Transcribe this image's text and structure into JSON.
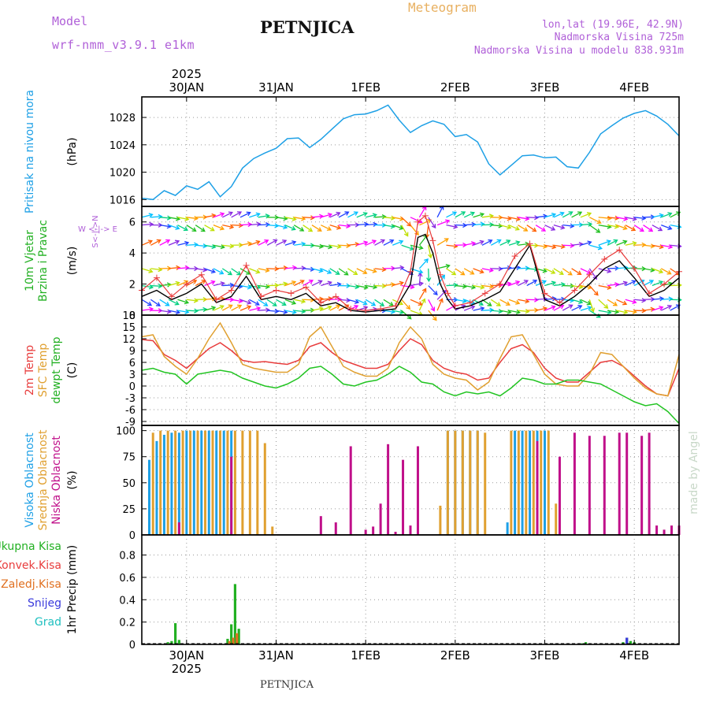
{
  "header": {
    "model_label": "Model",
    "model_name": "wrf-nmm_v3.9.1 e1km",
    "title": "PETNJICA",
    "meteogram": "Meteogram",
    "lonlat": "lon,lat (19.96E, 42.9N)",
    "altitude": "Nadmorska Visina 725m",
    "altitude_model": "Nadmorska Visina u modelu 838.931m",
    "footer_title": "PETNJICA",
    "credit": "made by Angel"
  },
  "time_axis": {
    "year": "2025",
    "days": [
      "30JAN",
      "31JAN",
      "1FEB",
      "2FEB",
      "3FEB",
      "4FEB"
    ],
    "day_hours": [
      12,
      36,
      60,
      84,
      108,
      132
    ],
    "range_hours": [
      0,
      144
    ]
  },
  "colors": {
    "pressure": "#1ea0e6",
    "temp2m": "#e83c3c",
    "sfc_temp": "#e0a030",
    "dewpoint": "#22c422",
    "wind_speed": "#000000",
    "gust": "#e83c3c",
    "high_cloud": "#1ea0e6",
    "mid_cloud": "#e0a030",
    "low_cloud": "#c0108a",
    "precip_total": "#22b022",
    "precip_convective": "#e83c3c",
    "precip_frozen": "#e07020",
    "snow": "#3a3adc",
    "graupel": "#20c0c0"
  },
  "chart_data": [
    {
      "type": "line",
      "name": "pressure",
      "ylabel_lines": [
        "Pritisak na nivou mora"
      ],
      "unit": "(hPa)",
      "ylim": [
        1015,
        1031
      ],
      "yticks": [
        1016,
        1020,
        1024,
        1028
      ],
      "grid": true,
      "series": [
        {
          "x": [
            0,
            3,
            6,
            9,
            12,
            15,
            18,
            21,
            24,
            27,
            30,
            33,
            36,
            39,
            42,
            45,
            48,
            51,
            54,
            57,
            60,
            63,
            66,
            69,
            72,
            75,
            78,
            81,
            84,
            87,
            90,
            93,
            96,
            99,
            102,
            105,
            108,
            111,
            114,
            117,
            120,
            123,
            126,
            129,
            132,
            135,
            138,
            141,
            144
          ],
          "y": [
            1016.2,
            1016.0,
            1017.3,
            1016.6,
            1018.0,
            1017.5,
            1018.6,
            1016.4,
            1017.9,
            1020.6,
            1022.0,
            1022.8,
            1023.5,
            1024.9,
            1025.0,
            1023.6,
            1024.8,
            1026.3,
            1027.8,
            1028.4,
            1028.5,
            1029.0,
            1029.8,
            1027.6,
            1025.8,
            1026.8,
            1027.5,
            1027.0,
            1025.2,
            1025.5,
            1024.4,
            1021.2,
            1019.6,
            1021.0,
            1022.4,
            1022.5,
            1022.1,
            1022.2,
            1020.8,
            1020.6,
            1022.9,
            1025.6,
            1026.8,
            1027.9,
            1028.6,
            1029.0,
            1028.2,
            1027.0,
            1025.3
          ]
        }
      ]
    },
    {
      "type": "line",
      "name": "wind",
      "ylabel_lines": [
        "10m Vjetar",
        "Brzina i Pravac"
      ],
      "unit": "(m/s)",
      "compass_label": "W <-|-> E",
      "compass_vertical": "S<-|->N",
      "ylim": [
        0,
        7
      ],
      "yticks": [
        0,
        2,
        4,
        6
      ],
      "grid": true,
      "arrow_rows": [
        0.3,
        1.0,
        1.9,
        3.0,
        4.5,
        5.8,
        6.3
      ],
      "series": [
        {
          "name": "speed",
          "x": [
            0,
            4,
            8,
            12,
            16,
            20,
            24,
            28,
            32,
            36,
            40,
            44,
            48,
            52,
            56,
            60,
            64,
            68,
            72,
            74,
            76,
            78,
            80,
            82,
            84,
            88,
            92,
            96,
            100,
            104,
            108,
            112,
            116,
            120,
            124,
            128,
            132,
            136,
            140,
            144
          ],
          "y": [
            1.2,
            1.6,
            1.0,
            1.4,
            2.0,
            0.8,
            1.2,
            2.5,
            1.0,
            1.2,
            1.0,
            1.4,
            0.6,
            0.8,
            0.3,
            0.2,
            0.3,
            0.4,
            2.0,
            5.0,
            5.2,
            4.0,
            2.0,
            1.0,
            0.4,
            0.6,
            1.0,
            1.5,
            3.0,
            4.5,
            1.0,
            0.6,
            1.2,
            2.0,
            3.0,
            3.5,
            2.4,
            1.2,
            1.6,
            2.4
          ]
        },
        {
          "name": "gust",
          "x": [
            0,
            4,
            8,
            12,
            16,
            20,
            24,
            28,
            32,
            36,
            40,
            44,
            48,
            52,
            56,
            60,
            64,
            68,
            72,
            74,
            76,
            78,
            80,
            82,
            84,
            88,
            92,
            96,
            100,
            104,
            108,
            112,
            116,
            120,
            124,
            128,
            132,
            136,
            140,
            144
          ],
          "y": [
            1.6,
            2.4,
            1.2,
            2.0,
            2.6,
            1.0,
            1.6,
            3.2,
            1.2,
            1.6,
            1.4,
            1.8,
            0.8,
            1.2,
            0.4,
            0.3,
            0.4,
            0.6,
            2.8,
            6.0,
            6.4,
            4.8,
            2.6,
            1.4,
            0.6,
            0.8,
            1.4,
            2.0,
            3.8,
            4.6,
            1.4,
            0.8,
            1.6,
            2.6,
            3.6,
            4.2,
            3.0,
            1.4,
            2.0,
            2.8
          ]
        }
      ]
    },
    {
      "type": "line",
      "name": "temperature",
      "ylabel_lines": [
        "2m Temp",
        "SFC Temp",
        "dewpt Temp"
      ],
      "unit": "(C)",
      "ylim": [
        -10,
        18
      ],
      "yticks": [
        -9,
        -6,
        -3,
        0,
        3,
        6,
        9,
        12,
        15,
        18
      ],
      "grid": true,
      "series": [
        {
          "name": "2m Temp",
          "x": [
            0,
            3,
            6,
            9,
            12,
            15,
            18,
            21,
            24,
            27,
            30,
            33,
            36,
            39,
            42,
            45,
            48,
            51,
            54,
            57,
            60,
            63,
            66,
            69,
            72,
            75,
            78,
            81,
            84,
            87,
            90,
            93,
            96,
            99,
            102,
            105,
            108,
            111,
            114,
            117,
            120,
            123,
            126,
            129,
            132,
            135,
            138,
            141,
            144
          ],
          "y": [
            11.8,
            11.5,
            8.0,
            6.5,
            4.5,
            7.0,
            9.5,
            11.0,
            9.0,
            6.5,
            6.0,
            6.2,
            5.8,
            5.5,
            6.5,
            10.0,
            11.0,
            8.5,
            6.5,
            5.5,
            4.5,
            4.5,
            5.5,
            9.0,
            12.0,
            10.5,
            6.5,
            4.5,
            3.5,
            3.0,
            1.5,
            2.0,
            6.0,
            9.5,
            10.5,
            8.5,
            4.5,
            2.0,
            1.0,
            1.0,
            3.5,
            6.0,
            6.5,
            5.0,
            2.5,
            0.0,
            -2.0,
            -2.5,
            4.5
          ]
        },
        {
          "name": "SFC Temp",
          "x": [
            0,
            3,
            6,
            9,
            12,
            15,
            18,
            21,
            24,
            27,
            30,
            33,
            36,
            39,
            42,
            45,
            48,
            51,
            54,
            57,
            60,
            63,
            66,
            69,
            72,
            75,
            78,
            81,
            84,
            87,
            90,
            93,
            96,
            99,
            102,
            105,
            108,
            111,
            114,
            117,
            120,
            123,
            126,
            129,
            132,
            135,
            138,
            141,
            144
          ],
          "y": [
            12.5,
            13.0,
            7.5,
            5.0,
            3.0,
            7.0,
            12.0,
            16.0,
            11.0,
            5.5,
            4.5,
            4.0,
            3.5,
            3.5,
            5.5,
            12.5,
            15.0,
            10.0,
            5.0,
            3.5,
            2.5,
            2.5,
            4.5,
            11.0,
            15.0,
            12.0,
            5.5,
            3.0,
            2.0,
            1.5,
            -1.0,
            1.0,
            7.0,
            12.5,
            13.0,
            8.0,
            3.0,
            0.5,
            0.0,
            0.0,
            3.0,
            8.5,
            8.0,
            5.0,
            2.0,
            -0.5,
            -2.0,
            -2.5,
            8.0
          ]
        },
        {
          "name": "dewpt Temp",
          "x": [
            0,
            3,
            6,
            9,
            12,
            15,
            18,
            21,
            24,
            27,
            30,
            33,
            36,
            39,
            42,
            45,
            48,
            51,
            54,
            57,
            60,
            63,
            66,
            69,
            72,
            75,
            78,
            81,
            84,
            87,
            90,
            93,
            96,
            99,
            102,
            105,
            108,
            111,
            114,
            117,
            120,
            123,
            126,
            129,
            132,
            135,
            138,
            141,
            144
          ],
          "y": [
            4.0,
            4.5,
            3.5,
            3.0,
            0.5,
            3.0,
            3.5,
            4.0,
            3.5,
            2.0,
            1.0,
            0.0,
            -0.5,
            0.5,
            2.0,
            4.5,
            5.0,
            3.0,
            0.5,
            0.0,
            1.0,
            1.5,
            3.0,
            5.0,
            3.5,
            1.0,
            0.5,
            -1.5,
            -2.5,
            -1.5,
            -2.0,
            -1.5,
            -2.5,
            -0.5,
            2.0,
            1.5,
            0.5,
            0.5,
            1.5,
            1.5,
            1.0,
            0.5,
            -1.0,
            -2.5,
            -4.0,
            -5.0,
            -4.5,
            -6.5,
            -9.5
          ]
        }
      ]
    },
    {
      "type": "bar",
      "name": "cloud",
      "ylabel_lines": [
        "Visoka Oblacnost",
        "Srednja Oblacnost",
        "Niska Oblacnost"
      ],
      "unit": "(%)",
      "ylim": [
        0,
        105
      ],
      "yticks": [
        0,
        25,
        50,
        75,
        100
      ],
      "grid": true,
      "series": [
        {
          "name": "Visoka Oblacnost",
          "x": [
            2,
            4,
            6,
            8,
            10,
            12,
            14,
            16,
            18,
            20,
            22,
            24,
            82,
            84,
            86,
            88,
            90,
            98,
            100,
            102,
            104,
            106,
            108
          ],
          "y": [
            72,
            90,
            96,
            98,
            98,
            100,
            100,
            100,
            100,
            100,
            100,
            100,
            100,
            100,
            100,
            100,
            100,
            12,
            100,
            100,
            100,
            100,
            100
          ]
        },
        {
          "name": "Srednja Oblacnost",
          "x": [
            3,
            5,
            7,
            9,
            11,
            13,
            15,
            17,
            19,
            21,
            23,
            25,
            27,
            29,
            31,
            33,
            35,
            80,
            82,
            84,
            86,
            88,
            90,
            92,
            99,
            101,
            103,
            105,
            107,
            109,
            111
          ],
          "y": [
            98,
            100,
            100,
            100,
            100,
            100,
            100,
            100,
            100,
            100,
            100,
            100,
            100,
            100,
            100,
            88,
            8,
            28,
            100,
            100,
            100,
            100,
            100,
            98,
            100,
            100,
            100,
            100,
            100,
            100,
            30
          ]
        },
        {
          "name": "Niska Oblacnost",
          "x": [
            10,
            24,
            48,
            52,
            56,
            60,
            62,
            64,
            66,
            68,
            70,
            72,
            74,
            78,
            80,
            82,
            106,
            112,
            116,
            120,
            124,
            128,
            130,
            134,
            136,
            138,
            140,
            142,
            144
          ],
          "y": [
            12,
            75,
            18,
            12,
            85,
            5,
            8,
            30,
            87,
            3,
            72,
            9,
            85,
            0,
            0,
            0,
            90,
            75,
            98,
            95,
            95,
            98,
            98,
            95,
            98,
            9,
            5,
            9,
            9
          ]
        }
      ]
    },
    {
      "type": "bar",
      "name": "precipitation",
      "ylabel_lines": [
        "1hr Precip (mm)"
      ],
      "legend": [
        "Ukupna Kisa",
        "Konvek.Kisa",
        "Zaledj.Kisa",
        "Snijeg",
        "Grad"
      ],
      "ylim": [
        0,
        0.98
      ],
      "yticks": [
        0,
        0.2,
        0.4,
        0.6,
        0.8
      ],
      "grid": true,
      "series": [
        {
          "name": "Ukupna Kisa",
          "x": [
            7,
            8,
            9,
            10,
            23,
            24,
            25,
            26,
            118,
            119,
            120,
            129,
            130,
            131,
            132
          ],
          "y": [
            0.02,
            0.03,
            0.19,
            0.04,
            0.05,
            0.18,
            0.54,
            0.14,
            0.01,
            0.02,
            0.01,
            0.02,
            0.06,
            0.03,
            0.02
          ]
        },
        {
          "name": "Zaledj.Kisa",
          "x": [
            23.5,
            24.5,
            25.5
          ],
          "y": [
            0.03,
            0.06,
            0.1
          ]
        },
        {
          "name": "Snijeg",
          "x": [
            130
          ],
          "y": [
            0.06
          ]
        }
      ]
    }
  ]
}
